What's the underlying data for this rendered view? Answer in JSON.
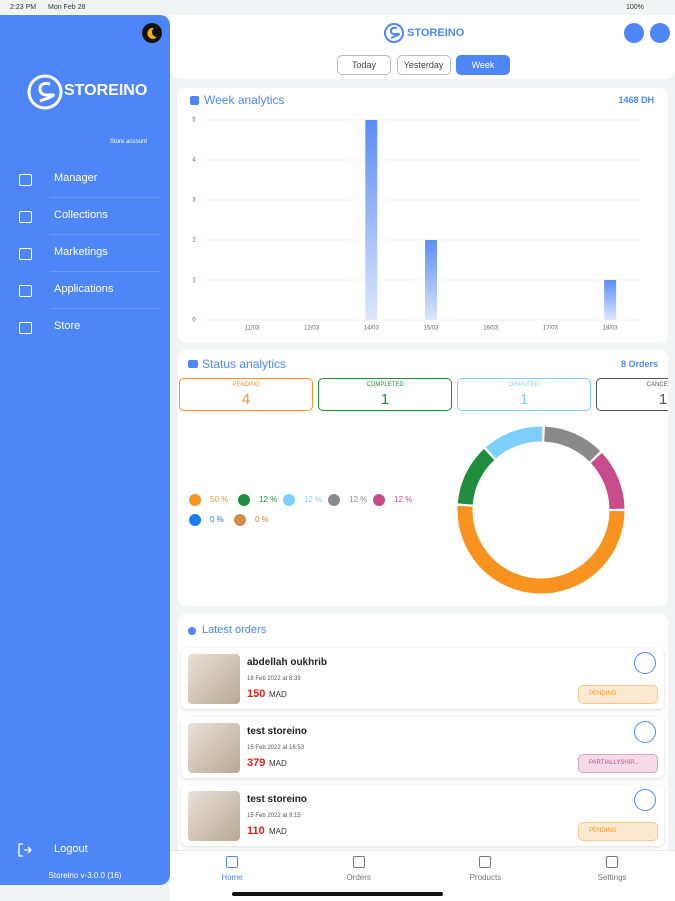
{
  "status_bar": {
    "time": "2:23 PM",
    "date": "Mon Feb 28",
    "battery": "100%"
  },
  "sidebar": {
    "logo": "STOREINO",
    "account": "Store account",
    "menu": [
      "Manager",
      "Collections",
      "Marketings",
      "Applications",
      "Store"
    ],
    "logout": "Logout",
    "version": "Storeino v-3.0.0 (16)"
  },
  "header": {
    "logo": "STOREINO",
    "tabs": [
      "Today",
      "Yesterday",
      "Week"
    ],
    "active_tab": 2
  },
  "chart_data": [
    {
      "type": "bar",
      "title": "Week analytics",
      "total": "1468 DH",
      "categories": [
        "11/03",
        "12/03",
        "14/03",
        "15/03",
        "16/03",
        "17/03",
        "18/03"
      ],
      "values": [
        0,
        0,
        5,
        2,
        0,
        0,
        1
      ],
      "color": "#5b8df6",
      "ylim": [
        0,
        5
      ],
      "yticks": [
        0,
        1,
        2,
        3,
        4,
        5
      ],
      "grid": true
    },
    {
      "type": "pie",
      "title": "Status analytics",
      "total": "8 Orders",
      "values": [
        50,
        12,
        12,
        12,
        12,
        0,
        0
      ],
      "value_labels": [
        "50 %",
        "12 %",
        "12 %",
        "12 %",
        "12 %",
        "0 %",
        "0 %"
      ],
      "colors": [
        "#f7931e",
        "#1e8e3e",
        "#7dcfff",
        "#8a8a8a",
        "#c84b8c",
        "#1a7cf5",
        "#d08a4a"
      ]
    }
  ],
  "statuses": [
    {
      "label": "PENDING",
      "count": 4,
      "color": "#f7931e"
    },
    {
      "label": "COMPLETED",
      "count": 1,
      "color": "#1e8e3e"
    },
    {
      "label": "DISPUTED",
      "count": 1,
      "color": "#7dcfff"
    },
    {
      "label": "CANCELED",
      "count": 1,
      "color": "#555555"
    }
  ],
  "orders": {
    "title": "Latest orders",
    "items": [
      {
        "name": "abdellah oukhrib",
        "date": "18 Feb 2022 at 8:39",
        "price": "150",
        "currency": "MAD",
        "status": "PENDING",
        "status_color": "#f7931e"
      },
      {
        "name": "test storeino",
        "date": "15 Feb 2022 at 16:53",
        "price": "379",
        "currency": "MAD",
        "status": "PARTIALLYSHIP...",
        "status_color": "#c84b8c"
      },
      {
        "name": "test storeino",
        "date": "15 Feb 2022 at 9:15",
        "price": "110",
        "currency": "MAD",
        "status": "PENDING",
        "status_color": "#f7931e"
      }
    ]
  },
  "nav": {
    "items": [
      "Home",
      "Orders",
      "Products",
      "Settings"
    ],
    "active": 0
  }
}
